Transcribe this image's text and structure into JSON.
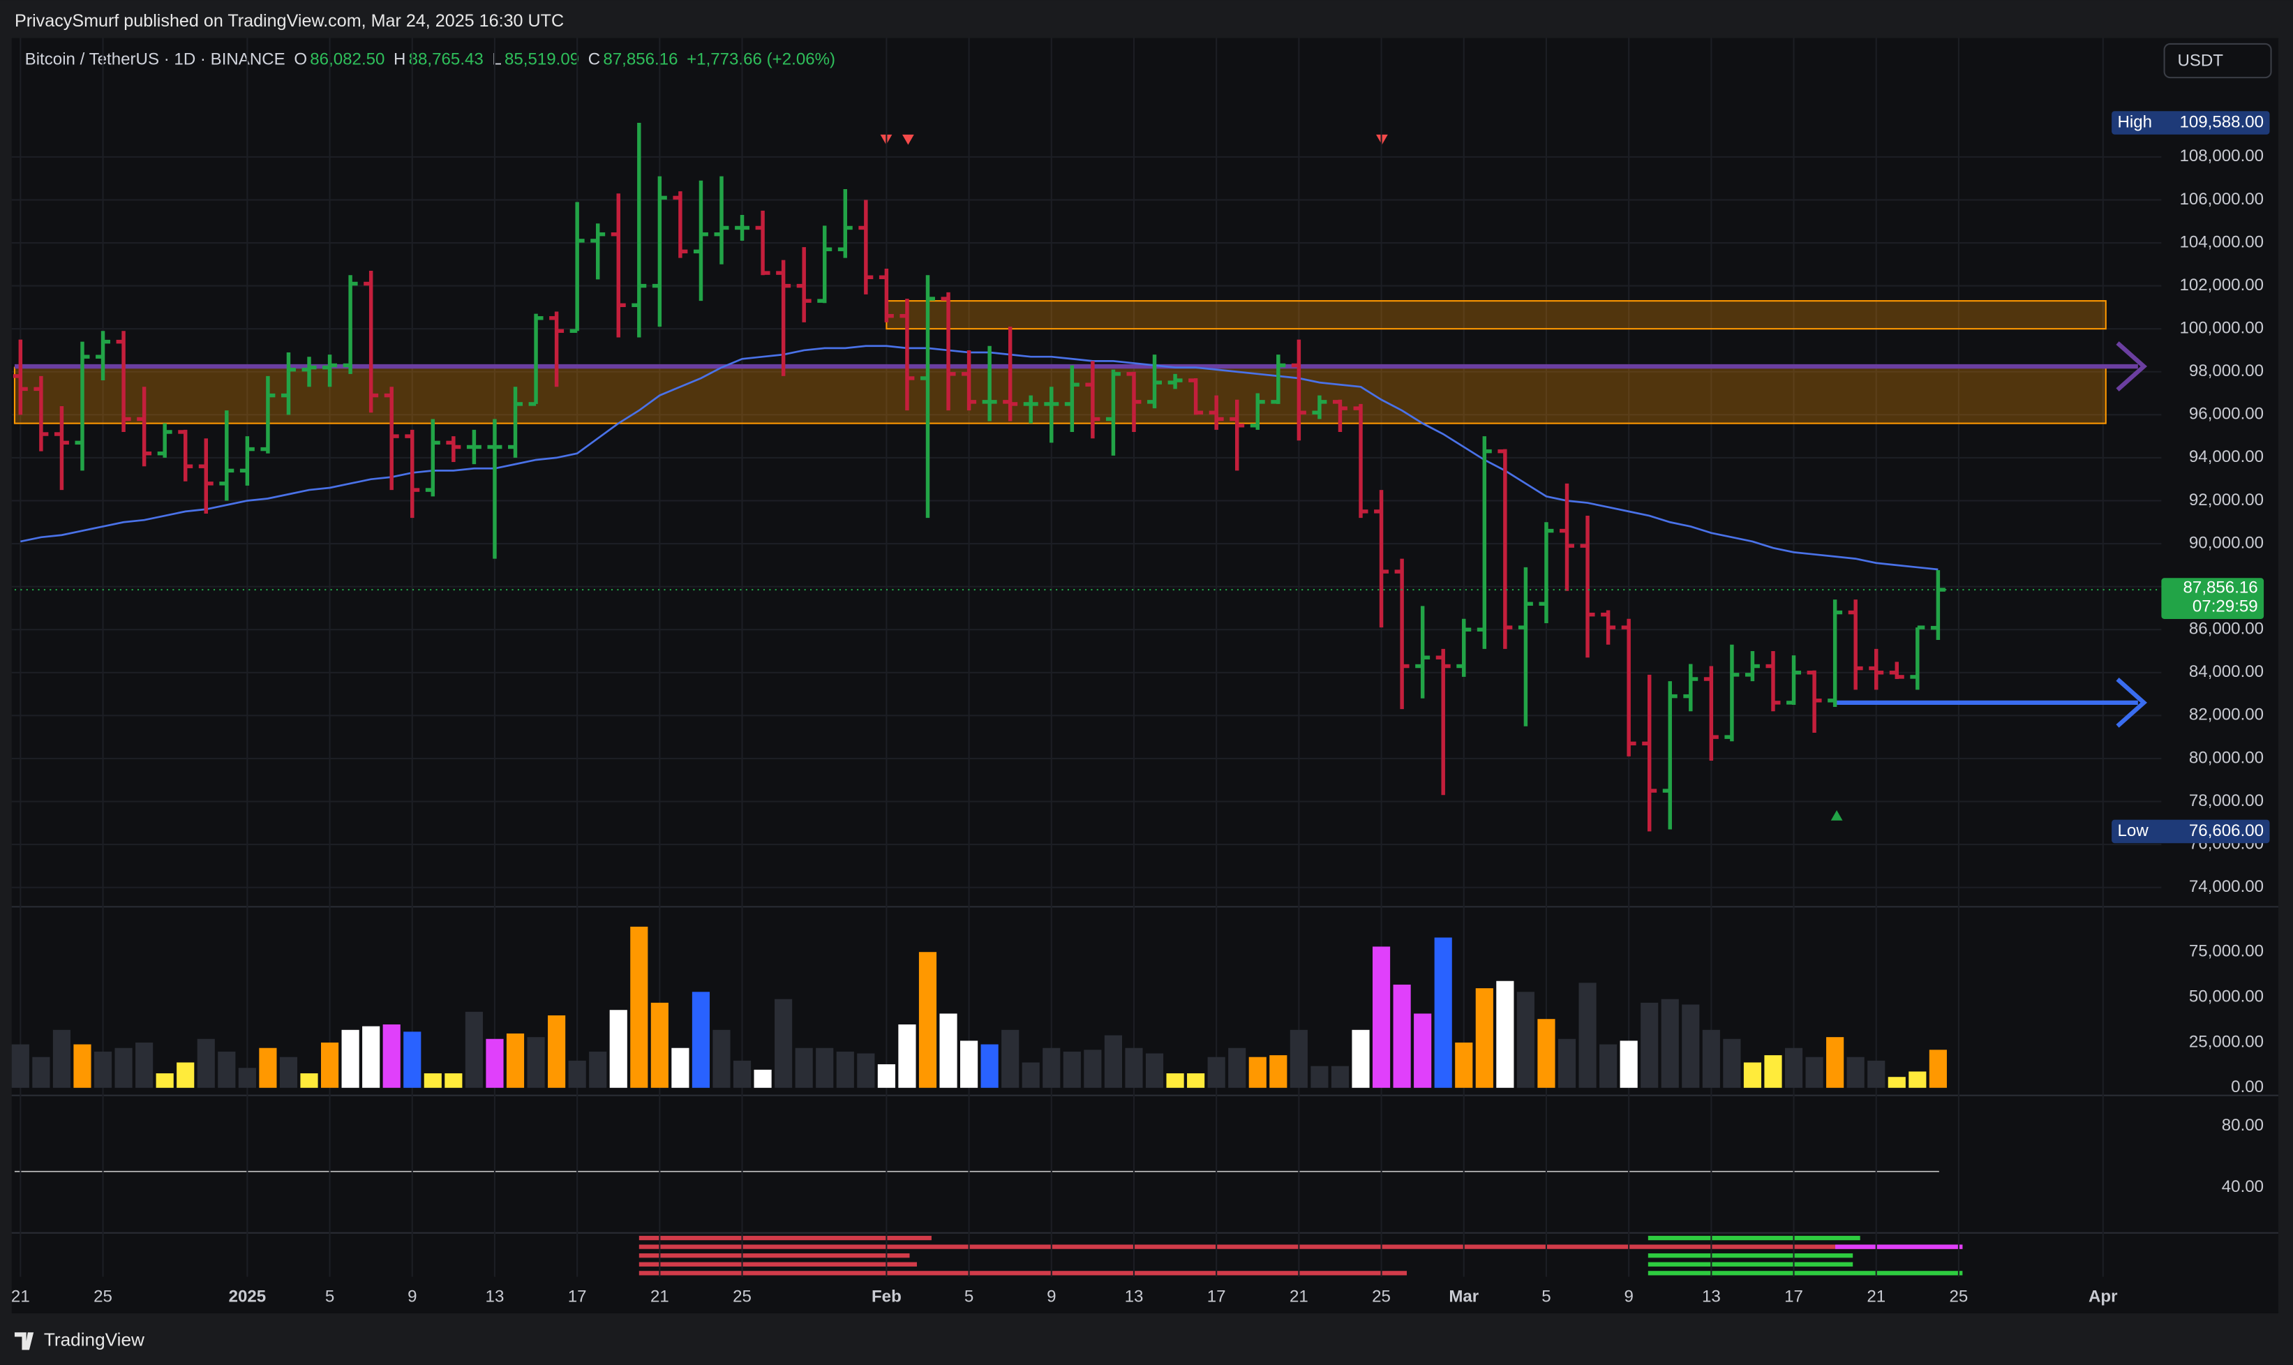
{
  "header": {
    "author": "PrivacySmurf published on TradingView.com, Mar 24, 2025 16:30 UTC",
    "brand": "TradingView",
    "currency": "USDT"
  },
  "chart_data": {
    "type": "ohlc",
    "legend": {
      "symbol": "Bitcoin / TetherUS · 1D · BINANCE",
      "fields": [
        {
          "key": "O",
          "value": "86,082.50"
        },
        {
          "key": "H",
          "value": "88,765.43"
        },
        {
          "key": "L",
          "value": "85,519.09"
        },
        {
          "key": "C",
          "value": "87,856.16"
        }
      ],
      "change": "+1,773.66 (+2.06%)"
    },
    "categories": [
      "21",
      null,
      null,
      null,
      "25",
      null,
      null,
      null,
      null,
      null,
      null,
      "2025",
      null,
      null,
      null,
      "5",
      null,
      null,
      null,
      "9",
      null,
      null,
      null,
      "13",
      null,
      null,
      null,
      "17",
      null,
      null,
      null,
      "21",
      null,
      null,
      null,
      "25",
      null,
      null,
      null,
      null,
      null,
      null,
      "Feb",
      null,
      null,
      null,
      "5",
      null,
      null,
      null,
      "9",
      null,
      null,
      null,
      "13",
      null,
      null,
      null,
      "17",
      null,
      null,
      null,
      "21",
      null,
      null,
      null,
      "25",
      null,
      null,
      null,
      "Mar",
      null,
      null,
      null,
      "5",
      null,
      null,
      null,
      "9",
      null,
      null,
      null,
      "13",
      null,
      null,
      null,
      "17",
      null,
      null,
      null,
      "21",
      null,
      null,
      null,
      "25",
      null,
      null,
      null,
      null,
      null,
      null,
      "Apr"
    ],
    "open": [
      97800,
      97200,
      95100,
      94700,
      98700,
      99400,
      95800,
      94200,
      95200,
      93600,
      92800,
      93400,
      94400,
      96900,
      98100,
      98200,
      98300,
      102100,
      96900,
      95000,
      92500,
      94700,
      94500,
      94500,
      94500,
      96500,
      100500,
      99900,
      104100,
      104400,
      101100,
      102000,
      106100,
      103600,
      104400,
      104700,
      104700,
      102600,
      102000,
      101300,
      103700,
      104700,
      102400,
      100600,
      97700,
      101400,
      97900,
      96600,
      96600,
      96500,
      96500,
      96500,
      97400,
      95800,
      97900,
      96600,
      97500,
      97600,
      96100,
      95800,
      95500,
      96600,
      98300,
      96100,
      96600,
      96300,
      91500,
      88700,
      84300,
      84700,
      84300,
      86000,
      94300,
      86100,
      87200,
      90600,
      89900,
      86700,
      86100,
      80700,
      78500,
      82900,
      83700,
      81000,
      83900,
      84300,
      82600,
      84000,
      82700,
      86800,
      84200,
      84000,
      83800,
      86082.5,
      null,
      null,
      null,
      null,
      null,
      null,
      null,
      null
    ],
    "high": [
      99500,
      97800,
      96400,
      99400,
      99900,
      99900,
      97300,
      95600,
      95300,
      94900,
      96200,
      95000,
      97800,
      98900,
      98700,
      98800,
      102500,
      102700,
      97300,
      95300,
      95800,
      95000,
      95300,
      95800,
      97300,
      100700,
      100800,
      105900,
      104900,
      106300,
      109588,
      107100,
      106400,
      106900,
      107100,
      105300,
      105500,
      103200,
      103800,
      104800,
      106500,
      106000,
      102800,
      101400,
      102500,
      101700,
      99000,
      99200,
      100100,
      96900,
      97300,
      98300,
      98500,
      98100,
      98000,
      98800,
      97900,
      97700,
      96900,
      96700,
      97000,
      98800,
      99500,
      96900,
      96700,
      96500,
      92500,
      89300,
      87100,
      85100,
      86500,
      95000,
      94400,
      88900,
      91000,
      92800,
      91300,
      86900,
      86500,
      83900,
      83600,
      84400,
      84300,
      85300,
      85000,
      85000,
      84800,
      84100,
      87400,
      87400,
      85100,
      84500,
      86100,
      88765.43,
      null,
      null,
      null,
      null,
      null,
      null,
      null,
      null
    ],
    "low": [
      96000,
      94300,
      92500,
      93400,
      97600,
      95200,
      93600,
      94000,
      92900,
      91400,
      92000,
      92700,
      94200,
      96000,
      97300,
      97300,
      97900,
      96100,
      92500,
      91200,
      92200,
      93800,
      93700,
      89300,
      94000,
      96500,
      97300,
      99900,
      102300,
      99600,
      99600,
      100100,
      103300,
      101300,
      103000,
      104100,
      102500,
      97800,
      100300,
      101200,
      103300,
      101600,
      100300,
      96200,
      91200,
      96200,
      96200,
      95700,
      95700,
      95600,
      94700,
      95200,
      94900,
      94100,
      95200,
      96300,
      97200,
      96000,
      95300,
      93400,
      95300,
      96500,
      94800,
      95800,
      95200,
      91200,
      86100,
      82300,
      82800,
      78300,
      83800,
      85100,
      85100,
      81500,
      86300,
      87800,
      84700,
      85300,
      80100,
      76606,
      76700,
      82200,
      79900,
      80800,
      83600,
      82200,
      82500,
      81200,
      82400,
      83200,
      83200,
      83700,
      83200,
      85519.09,
      null,
      null,
      null,
      null,
      null,
      null,
      null,
      null
    ],
    "close": [
      97200,
      95100,
      94700,
      98700,
      99400,
      95800,
      94200,
      95200,
      93600,
      92800,
      93400,
      94400,
      96900,
      98100,
      98200,
      98300,
      102100,
      96900,
      95000,
      92500,
      94700,
      94500,
      94500,
      94500,
      96500,
      100500,
      99900,
      104100,
      104400,
      101100,
      102000,
      106100,
      103600,
      104400,
      104700,
      104700,
      102600,
      102000,
      101300,
      103700,
      104700,
      102400,
      100600,
      97700,
      101400,
      97900,
      96600,
      96600,
      96500,
      96500,
      96500,
      97400,
      95800,
      97900,
      96600,
      97500,
      97600,
      96100,
      95800,
      95500,
      96600,
      98300,
      96100,
      96600,
      96300,
      91500,
      88700,
      84300,
      84700,
      84300,
      86000,
      94300,
      86100,
      87200,
      90600,
      89900,
      86700,
      86100,
      80700,
      78500,
      82900,
      83700,
      81000,
      83900,
      84300,
      82600,
      84000,
      82700,
      86800,
      84200,
      84000,
      83800,
      86100,
      87856.16,
      null,
      null,
      null,
      null,
      null,
      null,
      null,
      null
    ],
    "up_color": "#22a447",
    "down_color": "#c41f3c",
    "ma": {
      "color": "#4a72e8",
      "values": [
        90100,
        90300,
        90400,
        90600,
        90800,
        91000,
        91100,
        91300,
        91500,
        91600,
        91800,
        92000,
        92100,
        92300,
        92500,
        92600,
        92800,
        93000,
        93100,
        93300,
        93400,
        93400,
        93500,
        93500,
        93700,
        93900,
        94000,
        94200,
        94900,
        95600,
        96200,
        96900,
        97300,
        97700,
        98200,
        98600,
        98700,
        98800,
        99000,
        99100,
        99100,
        99200,
        99200,
        99100,
        99100,
        99000,
        98900,
        98900,
        98800,
        98700,
        98700,
        98600,
        98500,
        98500,
        98400,
        98300,
        98200,
        98200,
        98100,
        98000,
        97900,
        97800,
        97700,
        97500,
        97400,
        97300,
        96700,
        96200,
        95600,
        95100,
        94500,
        93900,
        93400,
        92800,
        92200,
        92000,
        91900,
        91700,
        91500,
        91300,
        91000,
        90800,
        90500,
        90300,
        90100,
        89800,
        89600,
        89500,
        89400,
        89300,
        89100,
        89000,
        88900,
        88800,
        null,
        null,
        null,
        null,
        null,
        null,
        null,
        null
      ]
    },
    "ylim": [
      73100,
      113600
    ],
    "yticks": [
      {
        "value": 74000,
        "label": "74,000.00"
      },
      {
        "value": 76000,
        "label": "76,000.00"
      },
      {
        "value": 78000,
        "label": "78,000.00"
      },
      {
        "value": 80000,
        "label": "80,000.00"
      },
      {
        "value": 82000,
        "label": "82,000.00"
      },
      {
        "value": 84000,
        "label": "84,000.00"
      },
      {
        "value": 86000,
        "label": "86,000.00"
      },
      {
        "value": 88000,
        "label": "88,000.00"
      },
      {
        "value": 90000,
        "label": "90,000.00"
      },
      {
        "value": 92000,
        "label": "92,000.00"
      },
      {
        "value": 94000,
        "label": "94,000.00"
      },
      {
        "value": 96000,
        "label": "96,000.00"
      },
      {
        "value": 98000,
        "label": "98,000.00"
      },
      {
        "value": 100000,
        "label": "100,000.00"
      },
      {
        "value": 102000,
        "label": "102,000.00"
      },
      {
        "value": 104000,
        "label": "104,000.00"
      },
      {
        "value": 106000,
        "label": "106,000.00"
      },
      {
        "value": 108000,
        "label": "108,000.00"
      }
    ],
    "badges": {
      "high": "High",
      "high_text": "109,588.00",
      "low": "Low",
      "low_text": "76,606.00",
      "last_text": "87,856.16",
      "timer": "07:29:59"
    },
    "levels": [
      {
        "value": 82600,
        "color": "#3a6df0"
      },
      {
        "value": 98250,
        "color": "#6b3fa0"
      }
    ],
    "zones": [
      {
        "from": 95600,
        "to": 98200,
        "color": "#ff9800"
      },
      {
        "from": 100000,
        "to": 101300,
        "color": "#ff9800"
      }
    ],
    "grid": true,
    "volume": {
      "values": [
        24000,
        17000,
        32000,
        24000,
        20000,
        22000,
        25000,
        8000,
        14000,
        27000,
        20000,
        11000,
        22000,
        17000,
        8000,
        25000,
        32000,
        34000,
        35000,
        31000,
        8000,
        8000,
        42000,
        27000,
        30000,
        28000,
        40000,
        15000,
        20000,
        43000,
        89000,
        47000,
        22000,
        53000,
        32000,
        15000,
        10000,
        49000,
        22000,
        22000,
        20000,
        19000,
        13000,
        35000,
        75000,
        41000,
        26000,
        24000,
        32000,
        14000,
        22000,
        20000,
        21000,
        29000,
        22000,
        19000,
        8000,
        8000,
        17000,
        22000,
        17000,
        18000,
        32000,
        12000,
        12000,
        32000,
        78000,
        57000,
        41000,
        83000,
        25000,
        55000,
        59000,
        53000,
        38000,
        27000,
        58000,
        24000,
        26000,
        47000,
        49000,
        46000,
        32000,
        27000,
        14000,
        18000,
        22000,
        17000,
        28000,
        17000,
        15000,
        6000,
        9000,
        21000,
        null,
        null,
        null,
        null,
        null,
        null,
        null,
        null
      ],
      "colors": [
        "#2a2d35",
        "#2a2d35",
        "#2a2d35",
        "#ff9800",
        "#2a2d35",
        "#2a2d35",
        "#2a2d35",
        "#ffeb3b",
        "#ffeb3b",
        "#2a2d35",
        "#2a2d35",
        "#2a2d35",
        "#ff9800",
        "#2a2d35",
        "#ffeb3b",
        "#ff9800",
        "#ffffff",
        "#ffffff",
        "#e040fb",
        "#2962ff",
        "#ffeb3b",
        "#ffeb3b",
        "#2a2d35",
        "#e040fb",
        "#ff9800",
        "#2a2d35",
        "#ff9800",
        "#2a2d35",
        "#2a2d35",
        "#ffffff",
        "#ff9800",
        "#ff9800",
        "#ffffff",
        "#2962ff",
        "#2a2d35",
        "#2a2d35",
        "#ffffff",
        "#2a2d35",
        "#2a2d35",
        "#2a2d35",
        "#2a2d35",
        "#2a2d35",
        "#ffffff",
        "#ffffff",
        "#ff9800",
        "#ffffff",
        "#ffffff",
        "#2962ff",
        "#2a2d35",
        "#2a2d35",
        "#2a2d35",
        "#2a2d35",
        "#2a2d35",
        "#2a2d35",
        "#2a2d35",
        "#2a2d35",
        "#ffeb3b",
        "#ffeb3b",
        "#2a2d35",
        "#2a2d35",
        "#ff9800",
        "#ff9800",
        "#2a2d35",
        "#2a2d35",
        "#2a2d35",
        "#ffffff",
        "#e040fb",
        "#e040fb",
        "#e040fb",
        "#2962ff",
        "#ff9800",
        "#ff9800",
        "#ffffff",
        "#2a2d35",
        "#ff9800",
        "#2a2d35",
        "#2a2d35",
        "#2a2d35",
        "#ffffff",
        "#2a2d35",
        "#2a2d35",
        "#2a2d35",
        "#2a2d35",
        "#2a2d35",
        "#ffeb3b",
        "#ffeb3b",
        "#2a2d35",
        "#2a2d35",
        "#ff9800",
        "#2a2d35",
        "#2a2d35",
        "#ffeb3b",
        "#ffeb3b",
        "#ff9800"
      ],
      "ylim": [
        -3400,
        100000
      ],
      "yticks": [
        {
          "value": 0,
          "label": "0.00"
        },
        {
          "value": 25000,
          "label": "25,000.00"
        },
        {
          "value": 50000,
          "label": "50,000.00"
        },
        {
          "value": 75000,
          "label": "75,000.00"
        }
      ]
    },
    "oscillator": {
      "ylim": [
        10.5,
        97
      ],
      "yticks": [
        {
          "value": 80,
          "label": "80.00"
        },
        {
          "value": 40,
          "label": "40.00"
        }
      ]
    }
  }
}
